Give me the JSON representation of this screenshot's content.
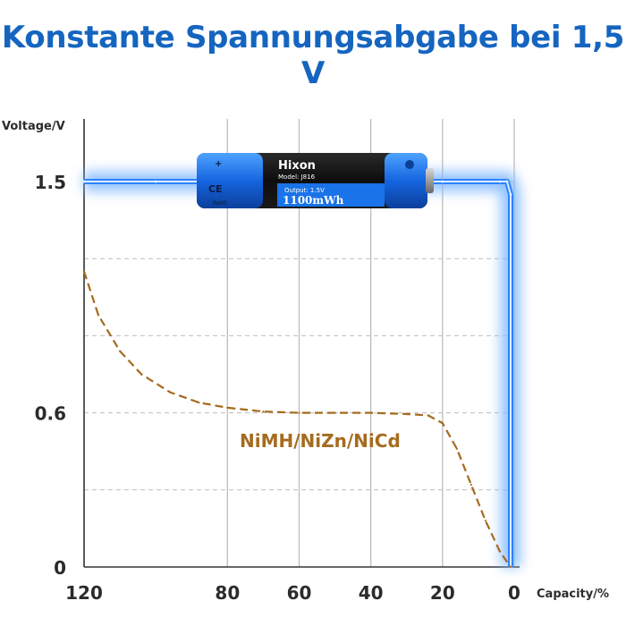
{
  "title": "Konstante Spannungsabgabe bei 1,5 V",
  "colors": {
    "title": "#1565c0",
    "constant": "#1e7bff",
    "glow": "#7fb7ff",
    "nimh": "#a56b1e"
  },
  "chart_data": {
    "type": "line",
    "xlabel": "Capacity/%",
    "ylabel": "Voltage/V",
    "x_ticks": [
      120,
      80,
      60,
      40,
      20,
      0
    ],
    "y_ticks": [
      0,
      0.6,
      1.5
    ],
    "xlim": [
      120,
      0
    ],
    "ylim": [
      0,
      1.5
    ],
    "grid": true,
    "series": [
      {
        "name": "",
        "style": "solid-glow",
        "x": [
          120,
          100,
          80,
          60,
          40,
          20,
          4,
          2,
          1,
          1
        ],
        "y": [
          1.5,
          1.5,
          1.5,
          1.5,
          1.5,
          1.5,
          1.5,
          1.5,
          1.45,
          0
        ]
      },
      {
        "name": "NiMH/NiZn/NiCd",
        "style": "dashed",
        "x": [
          120,
          116,
          110,
          104,
          96,
          88,
          80,
          70,
          60,
          50,
          40,
          30,
          24,
          20,
          16,
          12,
          8,
          4,
          1
        ],
        "y": [
          1.15,
          0.98,
          0.84,
          0.75,
          0.68,
          0.64,
          0.62,
          0.605,
          0.6,
          0.6,
          0.6,
          0.595,
          0.59,
          0.56,
          0.46,
          0.32,
          0.18,
          0.06,
          0
        ]
      }
    ]
  },
  "battery": {
    "brand": "Hixon",
    "model": "Model: J816",
    "output": "Output: 1.5V",
    "capacity": "1100mWh",
    "ce": "CE",
    "rohs": "RoHS"
  }
}
